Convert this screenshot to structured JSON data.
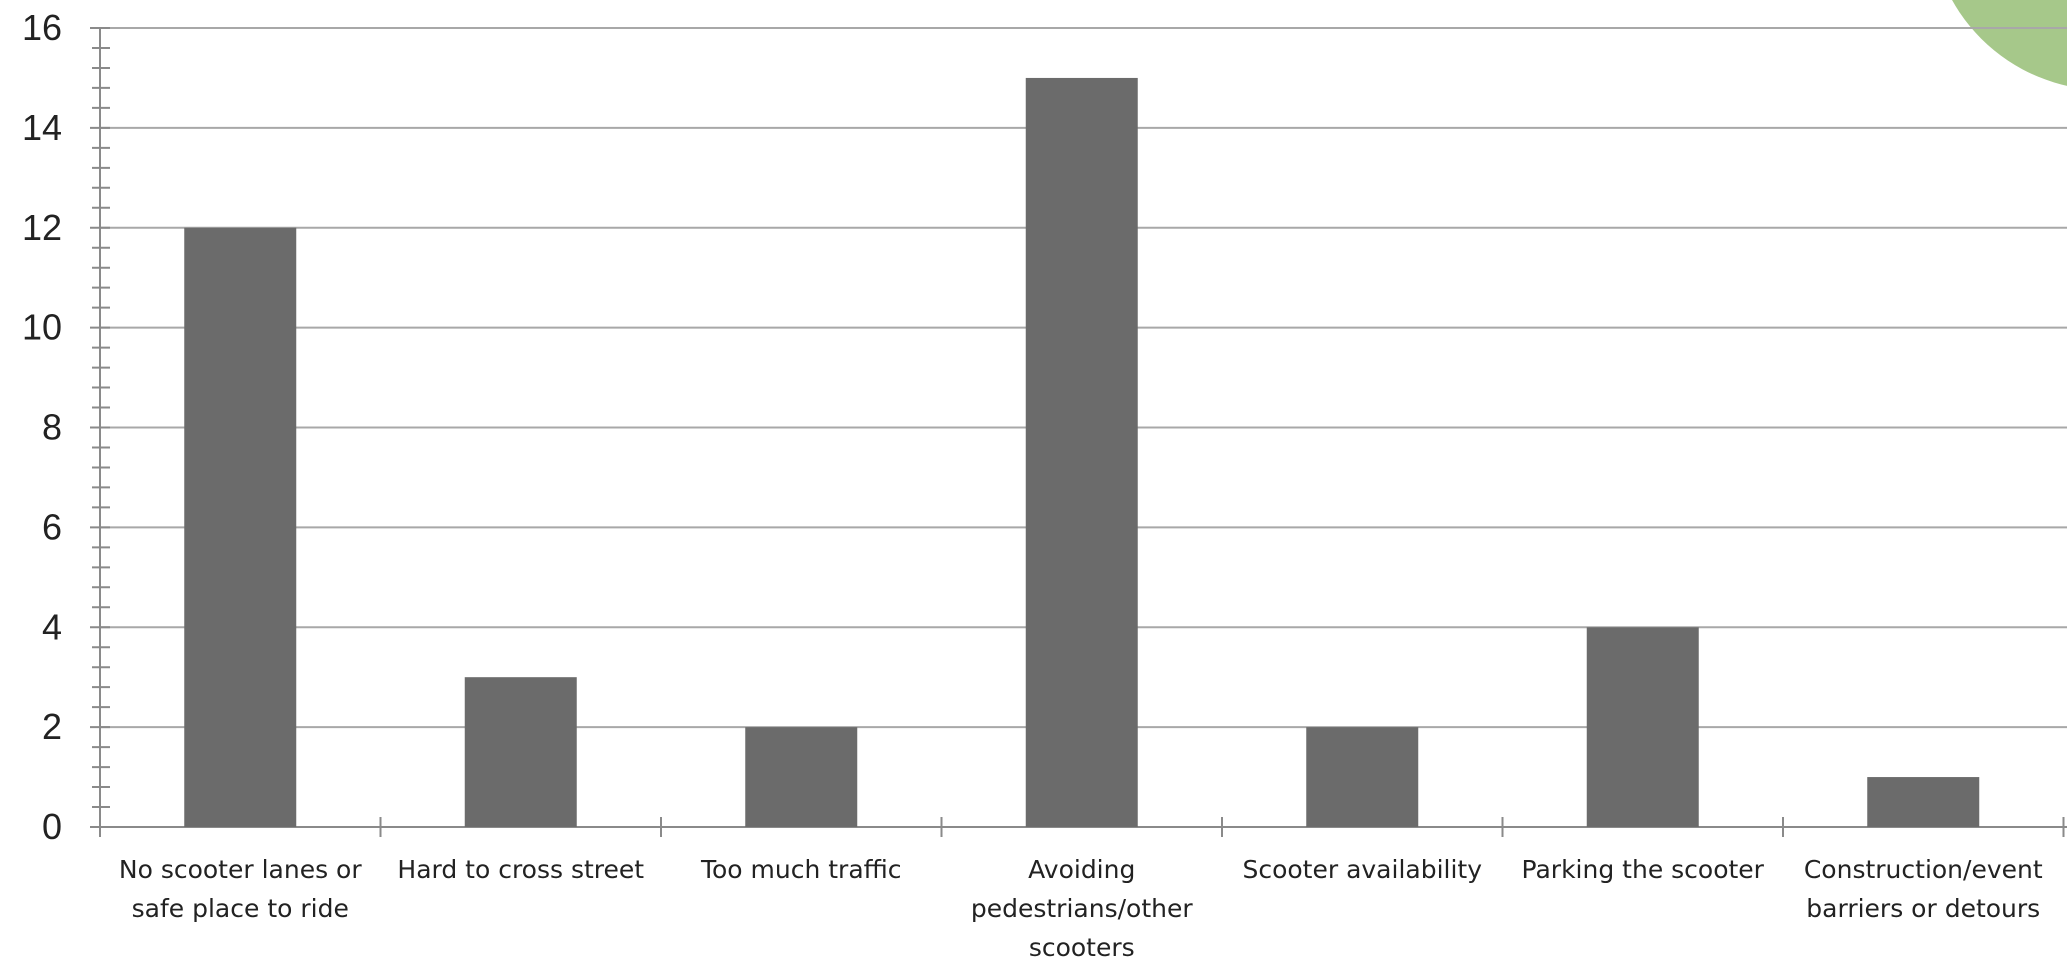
{
  "colors": {
    "bar": "#6b6b6b",
    "grid": "#a8a8a8",
    "axis": "#8a8a8a",
    "decoration": "#a6c88a"
  },
  "chart_data": {
    "type": "bar",
    "title": "",
    "xlabel": "",
    "ylabel": "",
    "ylim": [
      0,
      16
    ],
    "yticks": [
      0,
      2,
      4,
      6,
      8,
      10,
      12,
      14,
      16
    ],
    "grid": true,
    "categories": [
      "No scooter lanes or safe place to ride",
      "Hard to cross street",
      "Too much traffic",
      "Avoiding pedestrians/other scooters",
      "Scooter availability",
      "Parking the scooter",
      "Construction/event barriers or detours"
    ],
    "category_lines": [
      [
        "No scooter lanes or",
        "safe place to ride"
      ],
      [
        "Hard to cross street"
      ],
      [
        "Too much traffic"
      ],
      [
        "Avoiding",
        "pedestrians/other",
        "scooters"
      ],
      [
        "Scooter availability"
      ],
      [
        "Parking the scooter"
      ],
      [
        "Construction/event",
        "barriers or detours"
      ]
    ],
    "values": [
      12,
      3,
      2,
      15,
      2,
      4,
      1
    ]
  }
}
